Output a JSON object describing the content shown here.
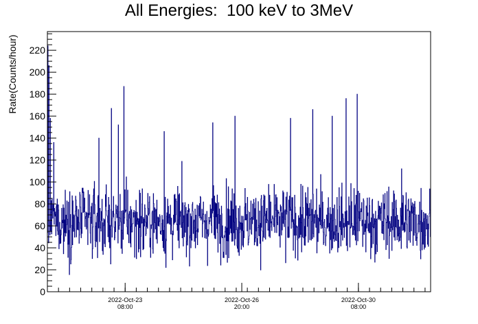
{
  "chart_data": {
    "type": "histogram",
    "title": "All Energies:  100 keV to 3MeV",
    "xlabel": "",
    "ylabel": "Rate(Counts/hour)",
    "x_start": "2022-10-21T00:00",
    "x_end": "2022-11-01T12:00",
    "bin_hours": 0.25,
    "ylim": [
      0,
      237
    ],
    "yticks": [
      0,
      20,
      40,
      60,
      80,
      100,
      120,
      140,
      160,
      180,
      200,
      220
    ],
    "xticks": [
      {
        "date": "2022-Oct-23",
        "time": "08:00",
        "at": "2022-10-23T08:00"
      },
      {
        "date": "2022-Oct-26",
        "time": "20:00",
        "at": "2022-10-26T20:00"
      },
      {
        "date": "2022-Oct-30",
        "time": "08:00",
        "at": "2022-10-30T08:00"
      }
    ],
    "typical_range": [
      20,
      120
    ],
    "typical_mean": 64,
    "notable_peaks": [
      {
        "at": "2022-10-21T00:20",
        "value": 224
      },
      {
        "at": "2022-10-21T01:00",
        "value": 206
      },
      {
        "at": "2022-10-21T02:00",
        "value": 158
      },
      {
        "at": "2022-10-21T04:30",
        "value": 136
      },
      {
        "at": "2022-10-22T13:00",
        "value": 140
      },
      {
        "at": "2022-10-22T22:00",
        "value": 167
      },
      {
        "at": "2022-10-23T03:00",
        "value": 152
      },
      {
        "at": "2022-10-23T07:00",
        "value": 187
      },
      {
        "at": "2022-10-24T12:00",
        "value": 146
      },
      {
        "at": "2022-10-25T23:00",
        "value": 154
      },
      {
        "at": "2022-10-26T15:00",
        "value": 160
      },
      {
        "at": "2022-10-28T07:00",
        "value": 158
      },
      {
        "at": "2022-10-28T23:00",
        "value": 166
      },
      {
        "at": "2022-10-29T13:00",
        "value": 160
      },
      {
        "at": "2022-10-29T23:00",
        "value": 176
      },
      {
        "at": "2022-10-30T07:00",
        "value": 180
      },
      {
        "at": "2022-10-31T15:00",
        "value": 112
      }
    ],
    "line_color": "#000080",
    "grid": false
  }
}
